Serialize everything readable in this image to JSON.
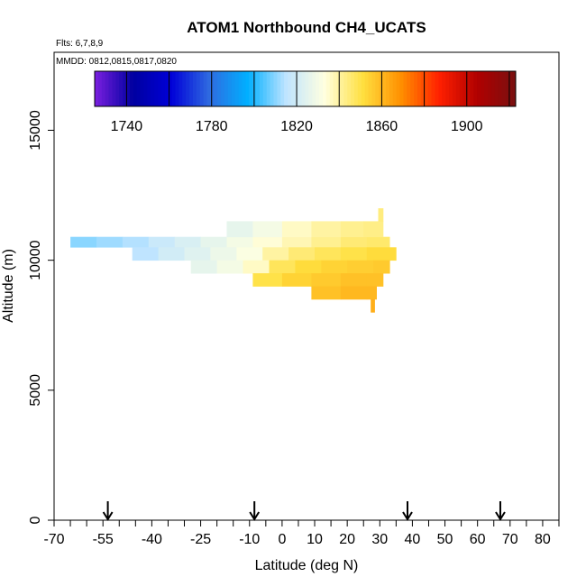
{
  "chart_data": {
    "type": "heatmap",
    "title": "ATOM1 Northbound CH4_UCATS",
    "subtitle_flights": "Flts: 6,7,8,9",
    "subtitle_dates": "MMDD: 0812,0815,0817,0820",
    "xlabel": "Latitude (deg N)",
    "ylabel": "Altitude (m)",
    "xlim": [
      -70,
      85
    ],
    "ylim": [
      0,
      18000
    ],
    "x_tick_labels": [
      "-70",
      "-55",
      "-40",
      "-25",
      "-10",
      "0",
      "10",
      "20",
      "30",
      "40",
      "50",
      "60",
      "70",
      "80"
    ],
    "x_minor_ticks": [
      -70,
      -65,
      -60,
      -55,
      -50,
      -45,
      -40,
      -35,
      -30,
      -25,
      -20,
      -15,
      -10,
      -5,
      0,
      5,
      10,
      15,
      20,
      25,
      30,
      35,
      40,
      45,
      50,
      55,
      60,
      65,
      70,
      75,
      80,
      85
    ],
    "y_ticks": [
      0,
      5000,
      10000,
      15000
    ],
    "y_tick_labels": [
      "0",
      "5000",
      "10000",
      "15000"
    ],
    "flight_markers_lat": [
      -53.5,
      -8.5,
      38.5,
      67
    ],
    "colorbar": {
      "min": 1725,
      "max": 1923,
      "tick_values": [
        1740,
        1780,
        1820,
        1860,
        1900
      ],
      "tick_labels": [
        "1740",
        "1780",
        "1820",
        "1860",
        "1900"
      ],
      "divisions": [
        1740,
        1760,
        1780,
        1800,
        1820,
        1840,
        1860,
        1880,
        1900,
        1920
      ],
      "colors": [
        "#7b1fe0",
        "#0000a0",
        "#0000d8",
        "#2f6be0",
        "#00b0ff",
        "#bfe4ff",
        "#ffffe0",
        "#ffe040",
        "#ff9000",
        "#ff2000",
        "#b00000",
        "#7a1010"
      ]
    },
    "cells": [
      {
        "lat0": -65,
        "lat1": -57,
        "alt0": 10500,
        "alt1": 10900,
        "value": 1810
      },
      {
        "lat0": -57,
        "lat1": -49,
        "alt0": 10500,
        "alt1": 10900,
        "value": 1812
      },
      {
        "lat0": -49,
        "lat1": -41,
        "alt0": 10500,
        "alt1": 10900,
        "value": 1814
      },
      {
        "lat0": -41,
        "lat1": -33,
        "alt0": 10500,
        "alt1": 10900,
        "value": 1818
      },
      {
        "lat0": -33,
        "lat1": -25,
        "alt0": 10500,
        "alt1": 10900,
        "value": 1822
      },
      {
        "lat0": -25,
        "lat1": -17,
        "alt0": 10500,
        "alt1": 10900,
        "value": 1826
      },
      {
        "lat0": -17,
        "lat1": -9,
        "alt0": 10500,
        "alt1": 10900,
        "value": 1830
      },
      {
        "lat0": -9,
        "lat1": 0,
        "alt0": 10500,
        "alt1": 10900,
        "value": 1834
      },
      {
        "lat0": 0,
        "lat1": 9,
        "alt0": 10500,
        "alt1": 10900,
        "value": 1838
      },
      {
        "lat0": 9,
        "lat1": 18,
        "alt0": 10500,
        "alt1": 10900,
        "value": 1842
      },
      {
        "lat0": 18,
        "lat1": 26,
        "alt0": 10500,
        "alt1": 10900,
        "value": 1845
      },
      {
        "lat0": 26,
        "lat1": 33,
        "alt0": 10500,
        "alt1": 10900,
        "value": 1846
      },
      {
        "lat0": -17,
        "lat1": -9,
        "alt0": 10900,
        "alt1": 11500,
        "value": 1826
      },
      {
        "lat0": -9,
        "lat1": 0,
        "alt0": 10900,
        "alt1": 11500,
        "value": 1830
      },
      {
        "lat0": 0,
        "lat1": 9,
        "alt0": 10900,
        "alt1": 11500,
        "value": 1836
      },
      {
        "lat0": 9,
        "lat1": 18,
        "alt0": 10900,
        "alt1": 11500,
        "value": 1840
      },
      {
        "lat0": 18,
        "lat1": 25,
        "alt0": 10900,
        "alt1": 11500,
        "value": 1842
      },
      {
        "lat0": 25,
        "lat1": 31,
        "alt0": 10900,
        "alt1": 11500,
        "value": 1843
      },
      {
        "lat0": 29.5,
        "lat1": 31,
        "alt0": 11500,
        "alt1": 12000,
        "value": 1844
      },
      {
        "lat0": -46,
        "lat1": -38,
        "alt0": 10000,
        "alt1": 10500,
        "value": 1815
      },
      {
        "lat0": -38,
        "lat1": -30,
        "alt0": 10000,
        "alt1": 10500,
        "value": 1820
      },
      {
        "lat0": -30,
        "lat1": -22,
        "alt0": 10000,
        "alt1": 10500,
        "value": 1824
      },
      {
        "lat0": -22,
        "lat1": -14,
        "alt0": 10000,
        "alt1": 10500,
        "value": 1828
      },
      {
        "lat0": -14,
        "lat1": -6,
        "alt0": 10000,
        "alt1": 10500,
        "value": 1832
      },
      {
        "lat0": -6,
        "lat1": 2,
        "alt0": 10000,
        "alt1": 10500,
        "value": 1840
      },
      {
        "lat0": 2,
        "lat1": 10,
        "alt0": 10000,
        "alt1": 10500,
        "value": 1845
      },
      {
        "lat0": 10,
        "lat1": 18,
        "alt0": 10000,
        "alt1": 10500,
        "value": 1848
      },
      {
        "lat0": 18,
        "lat1": 26,
        "alt0": 10000,
        "alt1": 10500,
        "value": 1850
      },
      {
        "lat0": 26,
        "lat1": 35,
        "alt0": 10000,
        "alt1": 10500,
        "value": 1852
      },
      {
        "lat0": -28,
        "lat1": -20,
        "alt0": 9500,
        "alt1": 10000,
        "value": 1826
      },
      {
        "lat0": -20,
        "lat1": -12,
        "alt0": 9500,
        "alt1": 10000,
        "value": 1830
      },
      {
        "lat0": -12,
        "lat1": -4,
        "alt0": 9500,
        "alt1": 10000,
        "value": 1836
      },
      {
        "lat0": -4,
        "lat1": 4,
        "alt0": 9500,
        "alt1": 10000,
        "value": 1848
      },
      {
        "lat0": 4,
        "lat1": 12,
        "alt0": 9500,
        "alt1": 10000,
        "value": 1852
      },
      {
        "lat0": 12,
        "lat1": 20,
        "alt0": 9500,
        "alt1": 10000,
        "value": 1854
      },
      {
        "lat0": 20,
        "lat1": 28,
        "alt0": 9500,
        "alt1": 10000,
        "value": 1855
      },
      {
        "lat0": 28,
        "lat1": 33,
        "alt0": 9500,
        "alt1": 10000,
        "value": 1856
      },
      {
        "lat0": -9,
        "lat1": 0,
        "alt0": 9000,
        "alt1": 9500,
        "value": 1850
      },
      {
        "lat0": 0,
        "lat1": 9,
        "alt0": 9000,
        "alt1": 9500,
        "value": 1854
      },
      {
        "lat0": 9,
        "lat1": 18,
        "alt0": 9000,
        "alt1": 9500,
        "value": 1856
      },
      {
        "lat0": 18,
        "lat1": 26,
        "alt0": 9000,
        "alt1": 9500,
        "value": 1858
      },
      {
        "lat0": 26,
        "lat1": 31,
        "alt0": 9000,
        "alt1": 9500,
        "value": 1858
      },
      {
        "lat0": 9,
        "lat1": 18,
        "alt0": 8500,
        "alt1": 9000,
        "value": 1858
      },
      {
        "lat0": 18,
        "lat1": 26,
        "alt0": 8500,
        "alt1": 9000,
        "value": 1860
      },
      {
        "lat0": 26,
        "lat1": 29,
        "alt0": 8500,
        "alt1": 9000,
        "value": 1860
      },
      {
        "lat0": 27.2,
        "lat1": 28.4,
        "alt0": 8000,
        "alt1": 8500,
        "value": 1862
      }
    ]
  }
}
